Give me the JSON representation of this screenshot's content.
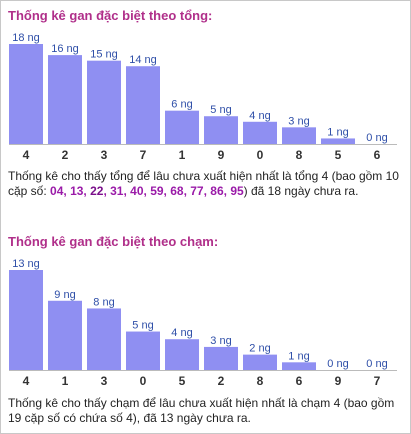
{
  "section1": {
    "title": "Thống kê gan đặc biệt theo tổng:",
    "desc_prefix": "Thống kê cho thấy tổng để lâu chưa xuất hiện nhất là tổng 4 (bao gồm 10 cặp số: ",
    "pairs": [
      "04",
      "13",
      "22",
      "31",
      "40",
      "59",
      "68",
      "77",
      "86",
      "95"
    ],
    "desc_suffix": ") đã 18 ngày chưa ra."
  },
  "section2": {
    "title": "Thống kê gan đặc biệt theo chạm:",
    "desc": "Thống kê cho thấy chạm để lâu chưa xuất hiện nhất là chạm 4 (bao gồm 19 cặp số có chứa số 4), đã 13 ngày chưa ra."
  },
  "colors": {
    "bar": "#8f8ff2",
    "title": "#b02f8a",
    "label": "#2f4fa8",
    "pairs": "#9a1aa8"
  },
  "chart_data": [
    {
      "type": "bar",
      "title": "Thống kê gan đặc biệt theo tổng:",
      "categories": [
        "4",
        "2",
        "3",
        "7",
        "1",
        "9",
        "0",
        "8",
        "5",
        "6"
      ],
      "values": [
        18,
        16,
        15,
        14,
        6,
        5,
        4,
        3,
        1,
        0
      ],
      "value_labels": [
        "18 ng",
        "16 ng",
        "15 ng",
        "14 ng",
        "6 ng",
        "5 ng",
        "4 ng",
        "3 ng",
        "1 ng",
        "0 ng"
      ],
      "xlabel": "",
      "ylabel": "",
      "ylim": [
        0,
        18
      ]
    },
    {
      "type": "bar",
      "title": "Thống kê gan đặc biệt theo chạm:",
      "categories": [
        "4",
        "1",
        "3",
        "0",
        "5",
        "2",
        "8",
        "6",
        "9",
        "7"
      ],
      "values": [
        13,
        9,
        8,
        5,
        4,
        3,
        2,
        1,
        0,
        0
      ],
      "value_labels": [
        "13 ng",
        "9 ng",
        "8 ng",
        "5 ng",
        "4 ng",
        "3 ng",
        "2 ng",
        "1 ng",
        "0 ng",
        "0 ng"
      ],
      "xlabel": "",
      "ylabel": "",
      "ylim": [
        0,
        13
      ]
    }
  ]
}
